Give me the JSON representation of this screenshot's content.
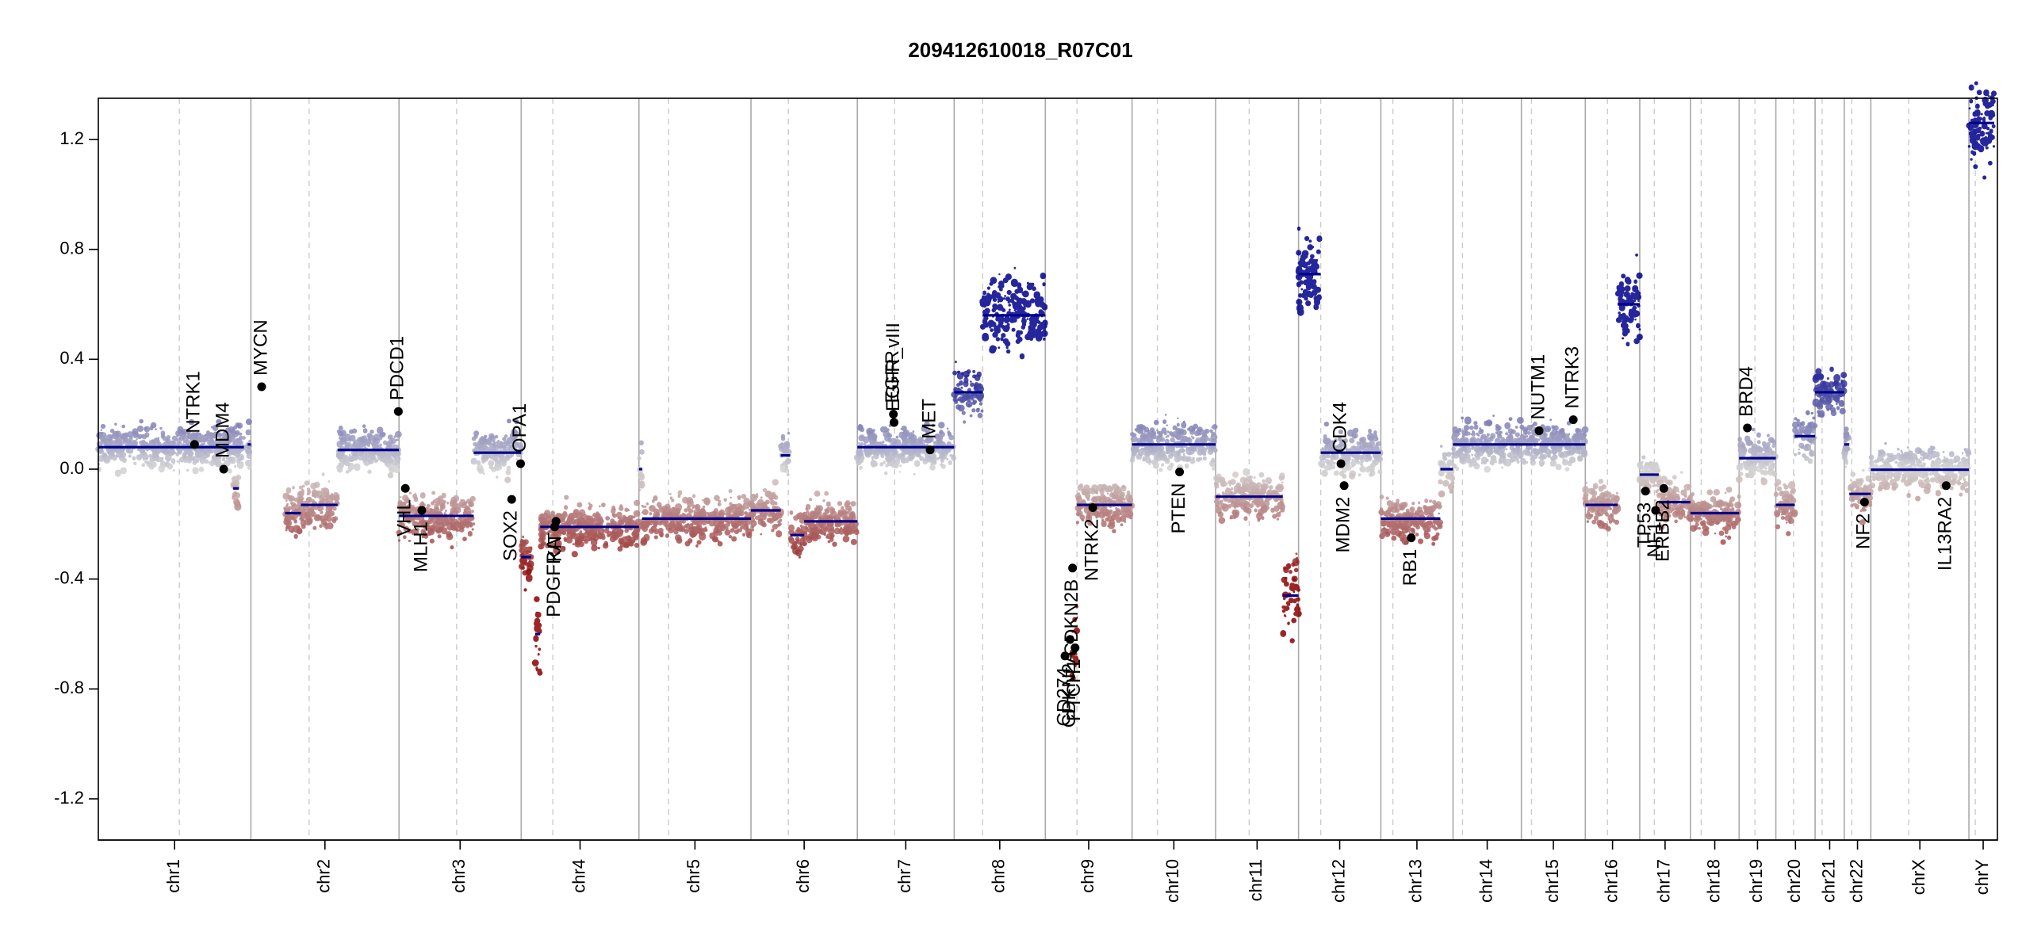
{
  "chart_data": {
    "type": "scatter",
    "title": "209412610018_R07C01",
    "xlabel": "",
    "ylabel": "",
    "ylim": [
      -1.35,
      1.35
    ],
    "yticks": [
      -1.2,
      -0.8,
      -0.4,
      0.0,
      0.4,
      0.8,
      1.2
    ],
    "ytick_labels": [
      "-1.2",
      "-0.8",
      "-0.4",
      "0.0",
      "0.4",
      "0.8",
      "1.2"
    ],
    "grid": false,
    "legend": "none",
    "colors": {
      "segment": "#00008b",
      "gain": "#00008b",
      "loss": "#8b0000",
      "neutral": "#d3d3d3",
      "boundary": "#a9a9a9",
      "centromere": "#cccccc",
      "gene_point": "#000000"
    },
    "genome_span": [
      0,
      3000
    ],
    "chromosomes": [
      {
        "name": "chr1",
        "start": 0,
        "end": 241,
        "centromere": 128
      },
      {
        "name": "chr2",
        "start": 241,
        "end": 475,
        "centromere": 333
      },
      {
        "name": "chr3",
        "start": 475,
        "end": 668,
        "centromere": 566
      },
      {
        "name": "chr4",
        "start": 668,
        "end": 854,
        "centromere": 718
      },
      {
        "name": "chr5",
        "start": 854,
        "end": 1031,
        "centromere": 901
      },
      {
        "name": "chr6",
        "start": 1031,
        "end": 1199,
        "centromere": 1090
      },
      {
        "name": "chr7",
        "start": 1199,
        "end": 1352,
        "centromere": 1258
      },
      {
        "name": "chr8",
        "start": 1352,
        "end": 1496,
        "centromere": 1397
      },
      {
        "name": "chr9",
        "start": 1496,
        "end": 1633,
        "centromere": 1546
      },
      {
        "name": "chr10",
        "start": 1633,
        "end": 1765,
        "centromere": 1673
      },
      {
        "name": "chr11",
        "start": 1765,
        "end": 1896,
        "centromere": 1818
      },
      {
        "name": "chr12",
        "start": 1896,
        "end": 2026,
        "centromere": 1931
      },
      {
        "name": "chr13",
        "start": 2026,
        "end": 2140,
        "centromere": 2045
      },
      {
        "name": "chr14",
        "start": 2140,
        "end": 2248,
        "centromere": 2155
      },
      {
        "name": "chr15",
        "start": 2248,
        "end": 2349,
        "centromere": 2264
      },
      {
        "name": "chr16",
        "start": 2349,
        "end": 2435,
        "centromere": 2384
      },
      {
        "name": "chr17",
        "start": 2435,
        "end": 2515,
        "centromere": 2458
      },
      {
        "name": "chr18",
        "start": 2515,
        "end": 2592,
        "centromere": 2532
      },
      {
        "name": "chr19",
        "start": 2592,
        "end": 2650,
        "centromere": 2617
      },
      {
        "name": "chr20",
        "start": 2650,
        "end": 2712,
        "centromere": 2678
      },
      {
        "name": "chr21",
        "start": 2712,
        "end": 2758,
        "centromere": 2723
      },
      {
        "name": "chr22",
        "start": 2758,
        "end": 2800,
        "centromere": 2770
      },
      {
        "name": "chrX",
        "start": 2800,
        "end": 2955,
        "centromere": 2860
      },
      {
        "name": "chrY",
        "start": 2955,
        "end": 3000,
        "centromere": 2965
      }
    ],
    "segments": [
      {
        "x0": 0,
        "x1": 230,
        "y": 0.08
      },
      {
        "x0": 213,
        "x1": 222,
        "y": -0.07
      },
      {
        "x0": 236,
        "x1": 241,
        "y": 0.09
      },
      {
        "x0": 295,
        "x1": 320,
        "y": -0.16
      },
      {
        "x0": 320,
        "x1": 378,
        "y": -0.13
      },
      {
        "x0": 378,
        "x1": 475,
        "y": 0.07
      },
      {
        "x0": 475,
        "x1": 504,
        "y": -0.17
      },
      {
        "x0": 504,
        "x1": 593,
        "y": -0.17
      },
      {
        "x0": 593,
        "x1": 668,
        "y": 0.06
      },
      {
        "x0": 668,
        "x1": 684,
        "y": -0.32
      },
      {
        "x0": 690,
        "x1": 698,
        "y": -0.6
      },
      {
        "x0": 698,
        "x1": 854,
        "y": -0.21
      },
      {
        "x0": 854,
        "x1": 859,
        "y": 0.0
      },
      {
        "x0": 859,
        "x1": 1031,
        "y": -0.18
      },
      {
        "x0": 1031,
        "x1": 1078,
        "y": -0.15
      },
      {
        "x0": 1078,
        "x1": 1093,
        "y": 0.05
      },
      {
        "x0": 1093,
        "x1": 1115,
        "y": -0.24
      },
      {
        "x0": 1115,
        "x1": 1199,
        "y": -0.19
      },
      {
        "x0": 1199,
        "x1": 1352,
        "y": 0.08
      },
      {
        "x0": 1352,
        "x1": 1397,
        "y": 0.28
      },
      {
        "x0": 1397,
        "x1": 1496,
        "y": 0.56
      },
      {
        "x0": 1538,
        "x1": 1546,
        "y": -0.65
      },
      {
        "x0": 1546,
        "x1": 1633,
        "y": -0.13
      },
      {
        "x0": 1633,
        "x1": 1765,
        "y": 0.09
      },
      {
        "x0": 1765,
        "x1": 1871,
        "y": -0.1
      },
      {
        "x0": 1871,
        "x1": 1896,
        "y": -0.46
      },
      {
        "x0": 1896,
        "x1": 1931,
        "y": 0.71
      },
      {
        "x0": 1931,
        "x1": 2026,
        "y": 0.06
      },
      {
        "x0": 2026,
        "x1": 2120,
        "y": -0.18
      },
      {
        "x0": 2120,
        "x1": 2140,
        "y": 0.0
      },
      {
        "x0": 2140,
        "x1": 2228,
        "y": 0.09
      },
      {
        "x0": 2228,
        "x1": 2349,
        "y": 0.09
      },
      {
        "x0": 2349,
        "x1": 2400,
        "y": -0.13
      },
      {
        "x0": 2400,
        "x1": 2435,
        "y": 0.6
      },
      {
        "x0": 2435,
        "x1": 2465,
        "y": -0.02
      },
      {
        "x0": 2465,
        "x1": 2515,
        "y": -0.12
      },
      {
        "x0": 2515,
        "x1": 2592,
        "y": -0.16
      },
      {
        "x0": 2592,
        "x1": 2650,
        "y": 0.04
      },
      {
        "x0": 2650,
        "x1": 2680,
        "y": -0.13
      },
      {
        "x0": 2680,
        "x1": 2712,
        "y": 0.12
      },
      {
        "x0": 2712,
        "x1": 2758,
        "y": 0.28
      },
      {
        "x0": 2758,
        "x1": 2766,
        "y": 0.09
      },
      {
        "x0": 2766,
        "x1": 2800,
        "y": -0.09
      },
      {
        "x0": 2800,
        "x1": 2955,
        "y": -0.002
      },
      {
        "x0": 2955,
        "x1": 2995,
        "y": 1.26
      }
    ],
    "genes": [
      {
        "name": "NTRK1",
        "x": 152,
        "y": 0.09
      },
      {
        "name": "MDM4",
        "x": 198,
        "y": 0.0
      },
      {
        "name": "MYCN",
        "x": 258,
        "y": 0.3
      },
      {
        "name": "PDCD1",
        "x": 474,
        "y": 0.21
      },
      {
        "name": "VHL",
        "x": 485,
        "y": -0.07
      },
      {
        "name": "MLH1",
        "x": 511,
        "y": -0.15
      },
      {
        "name": "SOX2",
        "x": 653,
        "y": -0.11
      },
      {
        "name": "OPA1",
        "x": 667,
        "y": 0.02
      },
      {
        "name": "PDGFRA",
        "x": 721,
        "y": -0.21
      },
      {
        "name": "KIT",
        "x": 723,
        "y": -0.19
      },
      {
        "name": "EGFR",
        "x": 1256,
        "y": 0.2
      },
      {
        "name": "EGFR_vIII",
        "x": 1257,
        "y": 0.17
      },
      {
        "name": "MET",
        "x": 1314,
        "y": 0.07
      },
      {
        "name": "CD274",
        "x": 1527,
        "y": -0.68
      },
      {
        "name": "CDKN2A",
        "x": 1535,
        "y": -0.62
      },
      {
        "name": "CDKN2B",
        "x": 1539,
        "y": -0.36
      },
      {
        "name": "PTCH1",
        "x": 1543,
        "y": -0.65
      },
      {
        "name": "NTRK2",
        "x": 1571,
        "y": -0.14
      },
      {
        "name": "PTEN",
        "x": 1708,
        "y": -0.01
      },
      {
        "name": "CDK4",
        "x": 1963,
        "y": 0.02
      },
      {
        "name": "MDM2",
        "x": 1968,
        "y": -0.06
      },
      {
        "name": "RB1",
        "x": 2074,
        "y": -0.25
      },
      {
        "name": "NUTM1",
        "x": 2276,
        "y": 0.14
      },
      {
        "name": "NTRK3",
        "x": 2330,
        "y": 0.18
      },
      {
        "name": "TP53",
        "x": 2444,
        "y": -0.08
      },
      {
        "name": "NF1",
        "x": 2460,
        "y": -0.15
      },
      {
        "name": "ERBB2",
        "x": 2473,
        "y": -0.07
      },
      {
        "name": "BRD4",
        "x": 2605,
        "y": 0.15
      },
      {
        "name": "NF2",
        "x": 2790,
        "y": -0.12
      },
      {
        "name": "IL13RA2",
        "x": 2919,
        "y": -0.06
      }
    ]
  }
}
